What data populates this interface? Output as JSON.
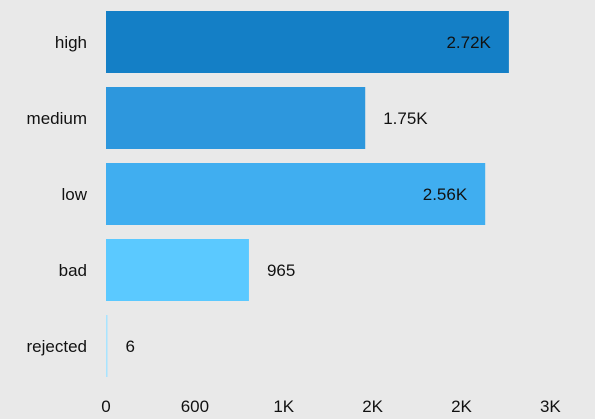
{
  "chart_data": {
    "type": "bar",
    "orientation": "horizontal",
    "title": "",
    "xlabel": "",
    "ylabel": "",
    "categories": [
      "high",
      "medium",
      "low",
      "bad",
      "rejected"
    ],
    "values": [
      2720,
      1750,
      2560,
      965,
      6
    ],
    "value_labels": [
      "2.72K",
      "1.75K",
      "2.56K",
      "965",
      "6"
    ],
    "label_inside": [
      true,
      false,
      true,
      false,
      false
    ],
    "colors": [
      "#147fc6",
      "#2d97dd",
      "#40aef0",
      "#5bc9ff",
      "#a8e4ff"
    ],
    "xlim": [
      0,
      3200
    ],
    "xticks": [
      0,
      600,
      1200,
      1800,
      2400,
      3000
    ],
    "xtick_labels": [
      "0",
      "600",
      "1K",
      "2K",
      "2K",
      "3K"
    ],
    "grid": false,
    "legend": "none"
  }
}
